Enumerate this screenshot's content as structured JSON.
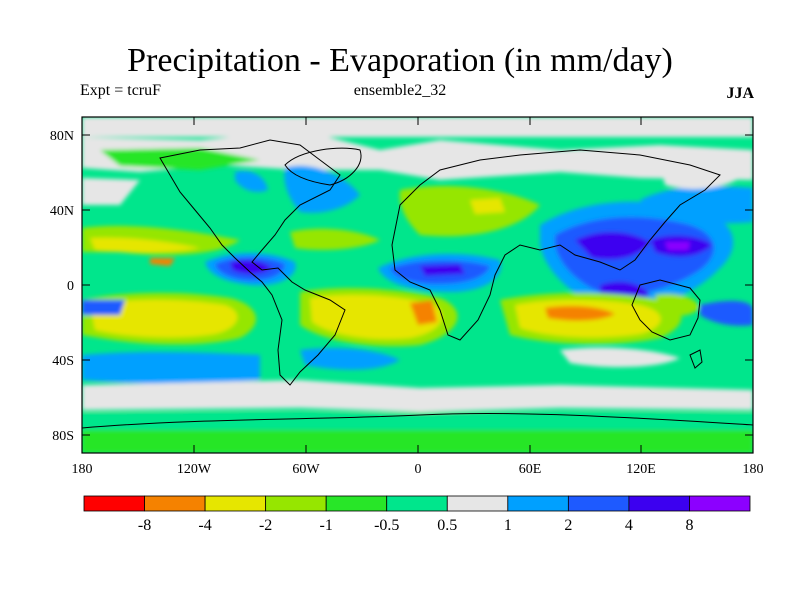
{
  "title": "Precipitation - Evaporation (in mm/day)",
  "experiment_label": "Expt = tcruF",
  "ensemble_label": "ensemble2_32",
  "season_label": "JJA",
  "map": {
    "projection": "cylindrical-equidistant",
    "lon_range": [
      -180,
      180
    ],
    "lat_range": [
      -90,
      90
    ],
    "lat_ticks": [
      "80N",
      "40N",
      "0",
      "40S",
      "80S"
    ],
    "lon_ticks": [
      "180",
      "120W",
      "60W",
      "0",
      "60E",
      "120E",
      "180"
    ],
    "background_category": "-0.5 to 0.5",
    "features": [
      "strong positive (4 to 8+) bands over tropical East Pacific/Central America, tropical Atlantic/Central Africa, Bay of Bengal, South China Sea / West Pacific warm pool",
      "negative (-2 to -8) subtropical bands over South Pacific, South Atlantic, South Indian Ocean and North Africa/Arabia",
      "positive mid-latitude storm tracks over North Pacific and North Atlantic and the Southern Ocean"
    ]
  },
  "colorbar": {
    "labels": [
      "-8",
      "-4",
      "-2",
      "-1",
      "-0.5",
      "0.5",
      "1",
      "2",
      "4",
      "8"
    ],
    "colors": [
      "#ff0000",
      "#f58200",
      "#e6e600",
      "#96e600",
      "#28e628",
      "#00e68c",
      "#e6e6e6",
      "#00a0ff",
      "#1e5aff",
      "#3c00f0",
      "#8c00ff"
    ]
  }
}
